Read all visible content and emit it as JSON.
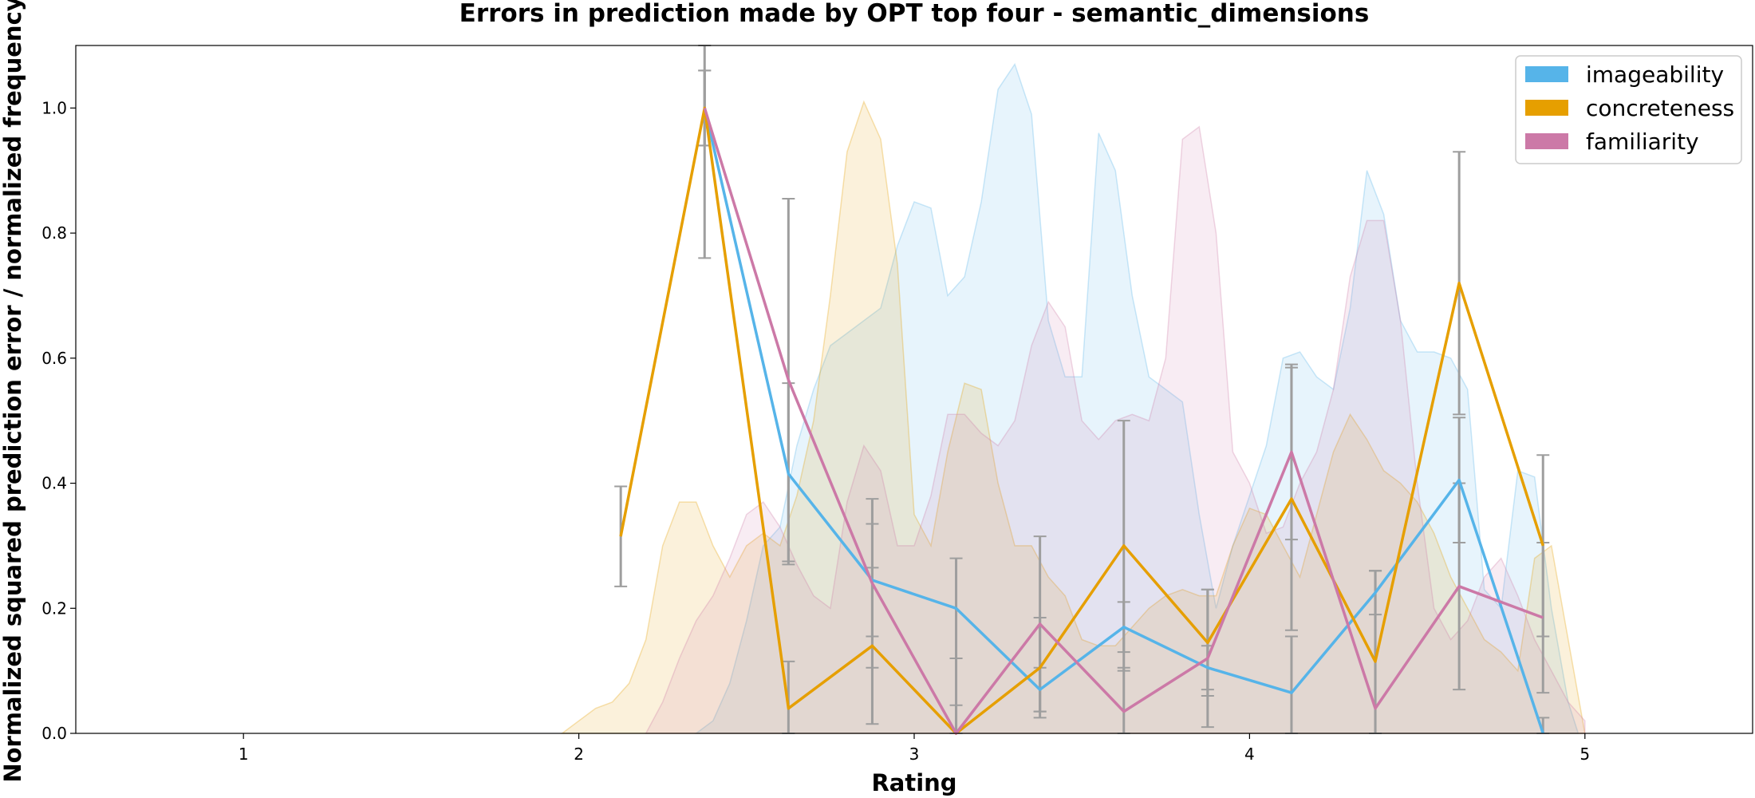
{
  "chart_data": {
    "type": "line",
    "title": "Errors in prediction made by OPT top four - semantic_dimensions",
    "xlabel": "Rating",
    "ylabel": "Normalized squared prediction error / normalized frequency",
    "xlim": [
      0.5,
      5.5
    ],
    "ylim": [
      0,
      1.1
    ],
    "xticks": [
      1,
      2,
      3,
      4,
      5
    ],
    "xtick_labels": [
      "1",
      "2",
      "3",
      "4",
      "5"
    ],
    "yticks": [
      0,
      0.2,
      0.4,
      0.6,
      0.8,
      1.0
    ],
    "ytick_labels": [
      "0.0",
      "0.2",
      "0.4",
      "0.6",
      "0.8",
      "1.0"
    ],
    "grid": false,
    "legend_position": "top-right",
    "series": [
      {
        "name": "imageability",
        "color": "#56B4E9",
        "x": [
          2.375,
          2.625,
          2.875,
          3.125,
          3.375,
          3.625,
          3.875,
          4.125,
          4.375,
          4.625,
          4.875
        ],
        "y": [
          1.0,
          0.415,
          0.245,
          0.2,
          0.07,
          0.17,
          0.105,
          0.065,
          0.225,
          0.405,
          0.0
        ],
        "yerr": [
          0.06,
          0.145,
          0.09,
          0.08,
          0.035,
          0.04,
          0.035,
          0.09,
          0.035,
          0.1,
          0.025
        ],
        "hist_x": [
          2.35,
          2.4,
          2.45,
          2.5,
          2.55,
          2.6,
          2.65,
          2.7,
          2.75,
          2.8,
          2.85,
          2.9,
          2.95,
          3.0,
          3.05,
          3.1,
          3.15,
          3.2,
          3.25,
          3.3,
          3.35,
          3.4,
          3.45,
          3.5,
          3.55,
          3.6,
          3.65,
          3.7,
          3.75,
          3.8,
          3.85,
          3.9,
          3.95,
          4.0,
          4.05,
          4.1,
          4.15,
          4.2,
          4.25,
          4.3,
          4.35,
          4.4,
          4.45,
          4.5,
          4.55,
          4.6,
          4.65,
          4.7,
          4.75,
          4.8,
          4.85,
          4.9,
          4.95,
          4.98
        ],
        "hist_y": [
          0.0,
          0.02,
          0.08,
          0.18,
          0.3,
          0.33,
          0.46,
          0.55,
          0.62,
          0.64,
          0.66,
          0.68,
          0.78,
          0.85,
          0.84,
          0.7,
          0.73,
          0.85,
          1.03,
          1.07,
          0.99,
          0.66,
          0.57,
          0.57,
          0.96,
          0.9,
          0.7,
          0.57,
          0.55,
          0.53,
          0.35,
          0.2,
          0.3,
          0.38,
          0.46,
          0.6,
          0.61,
          0.57,
          0.55,
          0.68,
          0.9,
          0.83,
          0.66,
          0.61,
          0.61,
          0.6,
          0.55,
          0.23,
          0.2,
          0.42,
          0.41,
          0.2,
          0.05,
          0.0
        ]
      },
      {
        "name": "concreteness",
        "color": "#E69F00",
        "x": [
          2.125,
          2.375,
          2.625,
          2.875,
          3.125,
          3.375,
          3.625,
          3.875,
          4.125,
          4.375,
          4.625,
          4.875
        ],
        "y": [
          0.315,
          1.0,
          0.04,
          0.14,
          0.0,
          0.105,
          0.3,
          0.145,
          0.375,
          0.115,
          0.72,
          0.3
        ],
        "yerr": [
          0.08,
          0.06,
          0.075,
          0.125,
          0.045,
          0.08,
          0.2,
          0.085,
          0.21,
          0.145,
          0.21,
          0.145
        ],
        "hist_x": [
          1.95,
          2.0,
          2.05,
          2.1,
          2.15,
          2.2,
          2.25,
          2.3,
          2.35,
          2.4,
          2.45,
          2.5,
          2.55,
          2.6,
          2.65,
          2.7,
          2.75,
          2.8,
          2.85,
          2.9,
          2.95,
          3.0,
          3.05,
          3.1,
          3.15,
          3.2,
          3.25,
          3.3,
          3.35,
          3.4,
          3.45,
          3.5,
          3.55,
          3.6,
          3.65,
          3.7,
          3.75,
          3.8,
          3.85,
          3.9,
          3.95,
          4.0,
          4.05,
          4.1,
          4.15,
          4.2,
          4.25,
          4.3,
          4.35,
          4.4,
          4.45,
          4.5,
          4.55,
          4.6,
          4.65,
          4.7,
          4.75,
          4.8,
          4.85,
          4.9,
          4.95,
          5.0
        ],
        "hist_y": [
          0.0,
          0.02,
          0.04,
          0.05,
          0.08,
          0.15,
          0.3,
          0.37,
          0.37,
          0.3,
          0.25,
          0.3,
          0.32,
          0.3,
          0.38,
          0.5,
          0.7,
          0.93,
          1.01,
          0.95,
          0.75,
          0.35,
          0.3,
          0.45,
          0.56,
          0.55,
          0.4,
          0.3,
          0.3,
          0.25,
          0.22,
          0.15,
          0.14,
          0.14,
          0.17,
          0.2,
          0.22,
          0.23,
          0.22,
          0.22,
          0.3,
          0.36,
          0.35,
          0.3,
          0.25,
          0.35,
          0.45,
          0.51,
          0.47,
          0.42,
          0.4,
          0.37,
          0.32,
          0.25,
          0.2,
          0.15,
          0.13,
          0.1,
          0.28,
          0.3,
          0.15,
          0.0
        ]
      },
      {
        "name": "familiarity",
        "color": "#CC79A7",
        "x": [
          2.375,
          2.625,
          2.875,
          3.125,
          3.375,
          3.625,
          3.875,
          4.125,
          4.375,
          4.625,
          4.875
        ],
        "y": [
          1.0,
          0.565,
          0.24,
          0.0,
          0.175,
          0.035,
          0.12,
          0.45,
          0.04,
          0.235,
          0.185
        ],
        "yerr": [
          0.24,
          0.29,
          0.135,
          0.12,
          0.14,
          0.07,
          0.11,
          0.14,
          0.22,
          0.165,
          0.12
        ],
        "hist_x": [
          2.2,
          2.25,
          2.3,
          2.35,
          2.4,
          2.45,
          2.5,
          2.55,
          2.6,
          2.65,
          2.7,
          2.75,
          2.8,
          2.85,
          2.9,
          2.95,
          3.0,
          3.05,
          3.1,
          3.15,
          3.2,
          3.25,
          3.3,
          3.35,
          3.4,
          3.45,
          3.5,
          3.55,
          3.6,
          3.65,
          3.7,
          3.75,
          3.8,
          3.85,
          3.9,
          3.95,
          4.0,
          4.05,
          4.1,
          4.15,
          4.2,
          4.25,
          4.3,
          4.35,
          4.4,
          4.45,
          4.5,
          4.55,
          4.6,
          4.65,
          4.7,
          4.75,
          4.8,
          4.85,
          4.9,
          4.95,
          5.0
        ],
        "hist_y": [
          0.0,
          0.05,
          0.12,
          0.18,
          0.22,
          0.28,
          0.35,
          0.37,
          0.33,
          0.27,
          0.22,
          0.2,
          0.37,
          0.46,
          0.42,
          0.3,
          0.3,
          0.38,
          0.51,
          0.51,
          0.48,
          0.46,
          0.5,
          0.62,
          0.69,
          0.65,
          0.5,
          0.47,
          0.5,
          0.51,
          0.5,
          0.6,
          0.95,
          0.97,
          0.8,
          0.45,
          0.4,
          0.32,
          0.33,
          0.4,
          0.45,
          0.55,
          0.73,
          0.82,
          0.82,
          0.66,
          0.4,
          0.2,
          0.15,
          0.18,
          0.25,
          0.28,
          0.22,
          0.15,
          0.1,
          0.05,
          0.02
        ]
      }
    ]
  }
}
